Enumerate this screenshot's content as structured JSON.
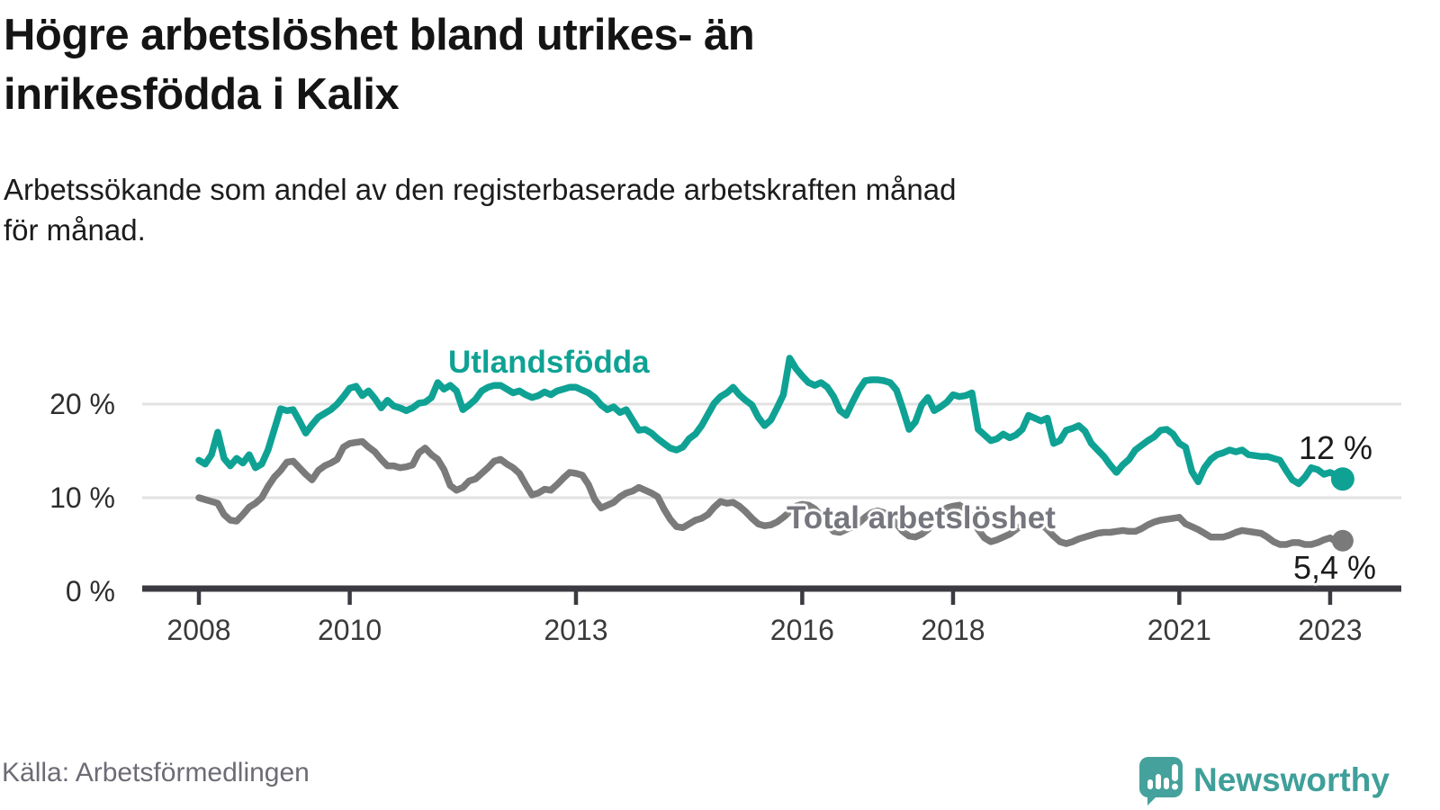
{
  "header": {
    "title_line1": "Högre arbetslöshet bland utrikes- än",
    "title_line2": "inrikesfödda i Kalix",
    "subtitle_line1": "Arbetssökande som andel av den registerbaserade arbetskraften månad",
    "subtitle_line2": "för månad."
  },
  "footer": {
    "source": "Källa: Arbetsförmedlingen",
    "brand": "Newsworthy"
  },
  "colors": {
    "series_foreign": "#0fa294",
    "series_total": "#7a7a7a",
    "grid": "#e2e2e2",
    "axis": "#3a3a40",
    "logo_teal": "#45a19b"
  },
  "chart_data": {
    "type": "line",
    "title": "Högre arbetslöshet bland utrikes- än inrikesfödda i Kalix",
    "subtitle": "Arbetssökande som andel av den registerbaserade arbetskraften månad för månad.",
    "x_unit": "month",
    "x_start": {
      "year": 2008,
      "month": 1
    },
    "x_end": {
      "year": 2023,
      "month": 3
    },
    "ylim": [
      0,
      27.5
    ],
    "grid": "horizontal",
    "y_ticks": [
      {
        "label": "0 %",
        "value": 0
      },
      {
        "label": "10 %",
        "value": 10
      },
      {
        "label": "20 %",
        "value": 20
      }
    ],
    "x_ticks": [
      {
        "label": "2008",
        "year": 2008
      },
      {
        "label": "2010",
        "year": 2010
      },
      {
        "label": "2013",
        "year": 2013
      },
      {
        "label": "2016",
        "year": 2016
      },
      {
        "label": "2018",
        "year": 2018
      },
      {
        "label": "2021",
        "year": 2021
      },
      {
        "label": "2023",
        "year": 2023
      }
    ],
    "series": [
      {
        "name": "Utlandsfödda",
        "end_label": "12 %",
        "color": "#0fa294",
        "values": [
          14.0,
          13.6,
          14.6,
          17.0,
          14.2,
          13.4,
          14.2,
          13.7,
          14.6,
          13.2,
          13.6,
          15.1,
          17.3,
          19.5,
          19.3,
          19.4,
          18.2,
          16.9,
          17.8,
          18.6,
          19.0,
          19.4,
          20.0,
          20.8,
          21.7,
          21.9,
          20.9,
          21.4,
          20.6,
          19.6,
          20.4,
          19.8,
          19.6,
          19.3,
          19.6,
          20.1,
          20.2,
          20.7,
          22.3,
          21.6,
          22.0,
          21.4,
          19.4,
          19.9,
          20.5,
          21.4,
          21.8,
          22.0,
          22.0,
          21.6,
          21.2,
          21.4,
          21.0,
          20.7,
          20.9,
          21.3,
          21.0,
          21.4,
          21.6,
          21.8,
          21.8,
          21.5,
          21.2,
          20.7,
          19.9,
          19.4,
          19.7,
          19.1,
          19.4,
          18.3,
          17.2,
          17.3,
          16.9,
          16.3,
          15.8,
          15.3,
          15.1,
          15.4,
          16.3,
          16.8,
          17.7,
          18.9,
          20.1,
          20.8,
          21.2,
          21.8,
          21.0,
          20.4,
          19.9,
          18.6,
          17.7,
          18.3,
          19.6,
          21.0,
          24.9,
          23.8,
          23.0,
          22.3,
          22.0,
          22.3,
          21.8,
          20.8,
          19.3,
          18.8,
          20.2,
          21.5,
          22.5,
          22.6,
          22.6,
          22.5,
          22.3,
          21.5,
          19.5,
          17.3,
          18.1,
          19.9,
          20.7,
          19.3,
          19.7,
          20.2,
          21.0,
          20.8,
          20.9,
          21.2,
          17.3,
          16.7,
          16.1,
          16.3,
          16.8,
          16.4,
          16.7,
          17.3,
          18.8,
          18.5,
          18.2,
          18.5,
          15.8,
          16.1,
          17.2,
          17.4,
          17.7,
          17.1,
          15.8,
          15.1,
          14.4,
          13.5,
          12.7,
          13.5,
          14.1,
          15.1,
          15.6,
          16.1,
          16.5,
          17.2,
          17.3,
          16.8,
          15.8,
          15.4,
          12.8,
          11.7,
          13.2,
          14.1,
          14.6,
          14.8,
          15.1,
          14.9,
          15.1,
          14.6,
          14.5,
          14.4,
          14.4,
          14.2,
          14.0,
          12.9,
          11.9,
          11.5,
          12.2,
          13.2,
          13.0,
          12.5,
          12.7,
          12.4,
          12.0
        ]
      },
      {
        "name": "Total arbetslöshet",
        "end_label": "5,4 %",
        "color": "#7a7a7a",
        "values": [
          10.0,
          9.8,
          9.6,
          9.4,
          8.2,
          7.6,
          7.5,
          8.2,
          9.0,
          9.4,
          10.0,
          11.2,
          12.2,
          12.9,
          13.8,
          13.9,
          13.2,
          12.5,
          11.9,
          12.9,
          13.4,
          13.7,
          14.1,
          15.4,
          15.8,
          15.9,
          16.0,
          15.4,
          14.9,
          14.1,
          13.4,
          13.4,
          13.2,
          13.3,
          13.5,
          14.8,
          15.3,
          14.6,
          14.1,
          13.0,
          11.3,
          10.8,
          11.1,
          11.8,
          12.0,
          12.6,
          13.2,
          13.9,
          14.1,
          13.6,
          13.2,
          12.6,
          11.4,
          10.3,
          10.5,
          10.9,
          10.8,
          11.4,
          12.1,
          12.7,
          12.6,
          12.4,
          11.4,
          9.8,
          8.9,
          9.2,
          9.5,
          10.1,
          10.5,
          10.7,
          11.1,
          10.8,
          10.5,
          10.1,
          8.8,
          7.7,
          6.9,
          6.8,
          7.2,
          7.6,
          7.8,
          8.2,
          9.0,
          9.6,
          9.4,
          9.5,
          9.1,
          8.5,
          7.8,
          7.2,
          7.0,
          7.1,
          7.4,
          7.9,
          8.5,
          9.1,
          9.3,
          9.2,
          8.8,
          8.1,
          7.2,
          6.4,
          6.3,
          6.6,
          6.9,
          7.3,
          7.9,
          8.4,
          8.6,
          8.4,
          7.9,
          7.2,
          6.4,
          5.9,
          5.8,
          6.1,
          6.6,
          7.4,
          8.2,
          8.9,
          9.1,
          9.2,
          8.8,
          7.9,
          6.6,
          5.7,
          5.3,
          5.5,
          5.8,
          6.1,
          6.6,
          7.1,
          7.4,
          7.5,
          7.2,
          6.6,
          5.9,
          5.3,
          5.1,
          5.3,
          5.6,
          5.8,
          6.0,
          6.2,
          6.3,
          6.3,
          6.4,
          6.5,
          6.4,
          6.4,
          6.7,
          7.1,
          7.4,
          7.6,
          7.7,
          7.8,
          7.9,
          7.2,
          6.9,
          6.6,
          6.2,
          5.8,
          5.8,
          5.8,
          6.0,
          6.3,
          6.5,
          6.4,
          6.3,
          6.2,
          5.8,
          5.3,
          5.0,
          5.0,
          5.2,
          5.2,
          5.0,
          5.0,
          5.2,
          5.5,
          5.7,
          5.3,
          5.4
        ]
      }
    ]
  }
}
